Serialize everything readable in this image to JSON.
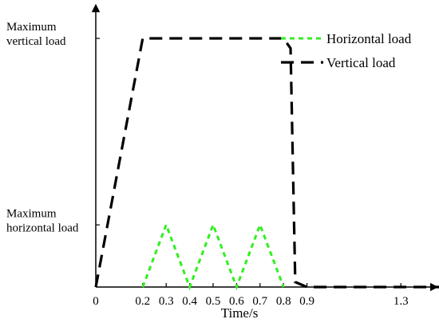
{
  "chart_data": {
    "type": "line",
    "title": "",
    "xlabel": "Time/s",
    "ylabel": "",
    "xlim": [
      0,
      1.5
    ],
    "ylim": [
      0,
      1
    ],
    "y_category_labels": [
      {
        "lines": [
          "Maximum",
          "vertical load"
        ],
        "level": 1.0
      },
      {
        "lines": [
          "Maximum",
          "horizontal  load"
        ],
        "level": 0.25
      }
    ],
    "x_ticks": [
      {
        "value": 0,
        "label": "0"
      },
      {
        "value": 0.2,
        "label": "0.2"
      },
      {
        "value": 0.3,
        "label": "0.3"
      },
      {
        "value": 0.4,
        "label": "0.4"
      },
      {
        "value": 0.5,
        "label": "0.5"
      },
      {
        "value": 0.6,
        "label": "0.6"
      },
      {
        "value": 0.7,
        "label": "0.7"
      },
      {
        "value": 0.8,
        "label": "0.8"
      },
      {
        "value": 0.9,
        "label": "0.9"
      },
      {
        "value": 1.3,
        "label": "1.3"
      }
    ],
    "legend_position": "top-right",
    "series": [
      {
        "name": "Horizontal  load",
        "color": "#33ee22",
        "style": "dotted",
        "x": [
          0.2,
          0.3,
          0.4,
          0.5,
          0.6,
          0.7,
          0.8
        ],
        "y": [
          0,
          0.25,
          0,
          0.25,
          0,
          0.25,
          0
        ]
      },
      {
        "name": "Vertical load",
        "color": "#000000",
        "style": "dashed",
        "x": [
          0,
          0.2,
          0.8,
          0.83,
          0.85,
          0.9,
          1.5
        ],
        "y": [
          0,
          1,
          1,
          0.96,
          0.02,
          0,
          0
        ]
      }
    ]
  }
}
